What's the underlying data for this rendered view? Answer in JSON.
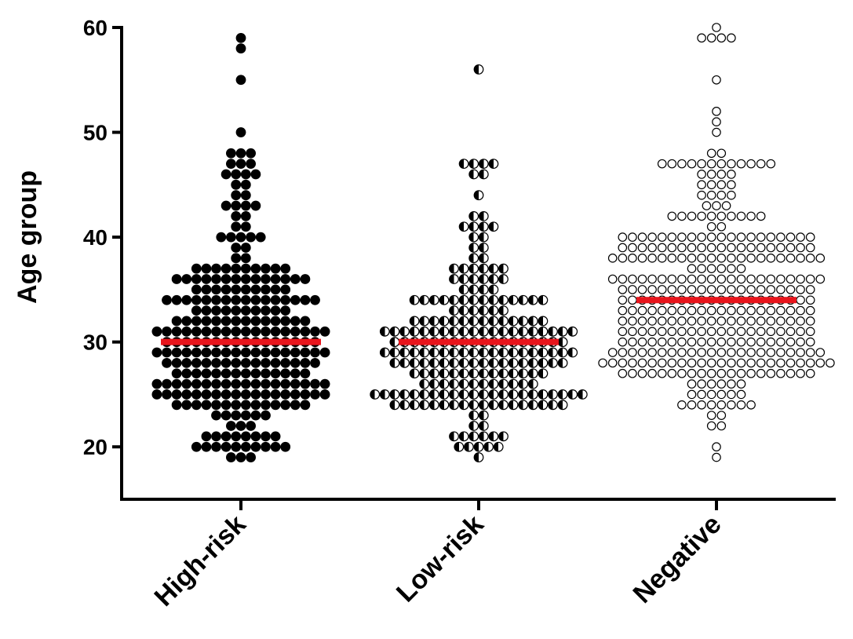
{
  "chart_data": {
    "type": "beeswarm",
    "y_label": "Age group",
    "categories": [
      "High-risk",
      "Low-risk",
      "Negative"
    ],
    "markers": [
      "filled",
      "half-filled",
      "open"
    ],
    "color": "#000000",
    "mean_color": "#e8141b",
    "means": [
      30,
      30,
      34
    ],
    "ylim": [
      15,
      60
    ],
    "yticks": [
      20,
      30,
      40,
      50,
      60
    ],
    "values": [
      [
        59,
        58,
        55,
        50,
        48,
        48,
        48,
        47,
        47,
        47,
        46,
        46,
        46,
        46,
        45,
        45,
        44,
        44,
        43,
        43,
        43,
        43,
        42,
        42,
        41,
        41,
        40,
        40,
        40,
        40,
        40,
        39,
        39,
        38,
        38,
        37,
        37,
        37,
        37,
        37,
        37,
        37,
        37,
        37,
        37,
        36,
        36,
        36,
        36,
        36,
        36,
        36,
        36,
        36,
        36,
        36,
        36,
        36,
        36,
        35,
        35,
        35,
        35,
        35,
        35,
        35,
        35,
        35,
        35,
        34,
        34,
        34,
        34,
        34,
        34,
        34,
        34,
        34,
        34,
        34,
        34,
        34,
        34,
        34,
        34,
        33,
        33,
        33,
        33,
        33,
        33,
        33,
        33,
        33,
        33,
        32,
        32,
        32,
        32,
        32,
        32,
        32,
        32,
        32,
        32,
        32,
        32,
        32,
        32,
        31,
        31,
        31,
        31,
        31,
        31,
        31,
        31,
        31,
        31,
        31,
        31,
        31,
        31,
        31,
        31,
        31,
        31,
        30,
        30,
        30,
        30,
        30,
        30,
        30,
        30,
        30,
        30,
        30,
        30,
        30,
        30,
        30,
        30,
        29,
        29,
        29,
        29,
        29,
        29,
        29,
        29,
        29,
        29,
        29,
        29,
        29,
        29,
        29,
        29,
        29,
        29,
        28,
        28,
        28,
        28,
        28,
        28,
        28,
        28,
        28,
        28,
        28,
        28,
        28,
        28,
        28,
        28,
        27,
        27,
        27,
        27,
        27,
        27,
        27,
        27,
        27,
        27,
        27,
        27,
        27,
        27,
        26,
        26,
        26,
        26,
        26,
        26,
        26,
        26,
        26,
        26,
        26,
        26,
        26,
        26,
        26,
        26,
        26,
        26,
        25,
        25,
        25,
        25,
        25,
        25,
        25,
        25,
        25,
        25,
        25,
        25,
        25,
        25,
        25,
        25,
        25,
        25,
        24,
        24,
        24,
        24,
        24,
        24,
        24,
        24,
        24,
        24,
        24,
        24,
        24,
        24,
        23,
        23,
        23,
        23,
        23,
        23,
        22,
        22,
        22,
        21,
        21,
        21,
        21,
        21,
        21,
        21,
        21,
        20,
        20,
        20,
        20,
        20,
        20,
        20,
        20,
        20,
        20,
        19,
        19,
        19
      ],
      [
        56,
        47,
        47,
        47,
        47,
        46,
        46,
        44,
        42,
        42,
        41,
        41,
        41,
        41,
        40,
        40,
        39,
        39,
        38,
        38,
        37,
        37,
        37,
        37,
        37,
        37,
        36,
        36,
        36,
        36,
        36,
        36,
        35,
        35,
        35,
        35,
        34,
        34,
        34,
        34,
        34,
        34,
        34,
        34,
        34,
        34,
        34,
        34,
        34,
        34,
        33,
        33,
        33,
        33,
        33,
        33,
        32,
        32,
        32,
        32,
        32,
        32,
        32,
        32,
        32,
        32,
        32,
        32,
        32,
        32,
        31,
        31,
        31,
        31,
        31,
        31,
        31,
        31,
        31,
        31,
        31,
        31,
        31,
        31,
        31,
        31,
        31,
        31,
        31,
        31,
        30,
        30,
        30,
        30,
        30,
        30,
        30,
        30,
        30,
        30,
        30,
        30,
        30,
        30,
        30,
        30,
        30,
        30,
        29,
        29,
        29,
        29,
        29,
        29,
        29,
        29,
        29,
        29,
        29,
        29,
        29,
        29,
        29,
        29,
        29,
        29,
        29,
        29,
        28,
        28,
        28,
        28,
        28,
        28,
        28,
        28,
        28,
        28,
        28,
        28,
        28,
        28,
        28,
        28,
        28,
        28,
        27,
        27,
        27,
        27,
        27,
        27,
        27,
        27,
        27,
        27,
        27,
        27,
        27,
        27,
        26,
        26,
        26,
        26,
        26,
        26,
        26,
        26,
        26,
        26,
        26,
        26,
        25,
        25,
        25,
        25,
        25,
        25,
        25,
        25,
        25,
        25,
        25,
        25,
        25,
        25,
        25,
        25,
        25,
        25,
        25,
        25,
        25,
        25,
        24,
        24,
        24,
        24,
        24,
        24,
        24,
        24,
        24,
        24,
        24,
        24,
        24,
        24,
        24,
        24,
        24,
        24,
        23,
        23,
        22,
        22,
        21,
        21,
        21,
        21,
        21,
        21,
        20,
        20,
        20,
        20,
        20,
        19
      ],
      [
        60,
        59,
        59,
        59,
        59,
        55,
        52,
        51,
        50,
        48,
        48,
        47,
        47,
        47,
        47,
        47,
        47,
        47,
        47,
        47,
        47,
        47,
        47,
        46,
        46,
        46,
        46,
        45,
        45,
        45,
        45,
        44,
        44,
        44,
        44,
        43,
        43,
        43,
        42,
        42,
        42,
        42,
        42,
        42,
        42,
        42,
        42,
        42,
        41,
        41,
        40,
        40,
        40,
        40,
        40,
        40,
        40,
        40,
        40,
        40,
        40,
        40,
        40,
        40,
        40,
        40,
        40,
        40,
        40,
        40,
        39,
        39,
        39,
        39,
        39,
        39,
        39,
        39,
        39,
        39,
        39,
        39,
        39,
        39,
        39,
        39,
        39,
        39,
        39,
        39,
        38,
        38,
        38,
        38,
        38,
        38,
        38,
        38,
        38,
        38,
        38,
        38,
        38,
        38,
        38,
        38,
        38,
        38,
        38,
        38,
        38,
        38,
        37,
        37,
        37,
        37,
        37,
        37,
        36,
        36,
        36,
        36,
        36,
        36,
        36,
        36,
        36,
        36,
        36,
        36,
        36,
        36,
        36,
        36,
        36,
        36,
        36,
        36,
        36,
        36,
        35,
        35,
        35,
        35,
        35,
        35,
        35,
        35,
        35,
        35,
        35,
        35,
        35,
        35,
        35,
        35,
        35,
        35,
        35,
        35,
        34,
        34,
        34,
        34,
        34,
        34,
        34,
        34,
        34,
        34,
        34,
        34,
        34,
        34,
        34,
        34,
        34,
        34,
        34,
        34,
        33,
        33,
        33,
        33,
        33,
        33,
        33,
        33,
        33,
        33,
        33,
        33,
        33,
        33,
        33,
        33,
        33,
        33,
        33,
        33,
        32,
        32,
        32,
        32,
        32,
        32,
        32,
        32,
        32,
        32,
        32,
        32,
        32,
        32,
        32,
        32,
        32,
        32,
        32,
        32,
        31,
        31,
        31,
        31,
        31,
        31,
        31,
        31,
        31,
        31,
        31,
        31,
        31,
        31,
        31,
        31,
        31,
        31,
        31,
        31,
        30,
        30,
        30,
        30,
        30,
        30,
        30,
        30,
        30,
        30,
        30,
        30,
        30,
        30,
        30,
        30,
        30,
        30,
        30,
        30,
        29,
        29,
        29,
        29,
        29,
        29,
        29,
        29,
        29,
        29,
        29,
        29,
        29,
        29,
        29,
        29,
        29,
        29,
        29,
        29,
        29,
        29,
        28,
        28,
        28,
        28,
        28,
        28,
        28,
        28,
        28,
        28,
        28,
        28,
        28,
        28,
        28,
        28,
        28,
        28,
        28,
        28,
        28,
        28,
        28,
        28,
        27,
        27,
        27,
        27,
        27,
        27,
        27,
        27,
        27,
        27,
        27,
        27,
        27,
        27,
        27,
        27,
        27,
        27,
        27,
        27,
        26,
        26,
        26,
        26,
        26,
        26,
        25,
        25,
        25,
        25,
        25,
        25,
        24,
        24,
        24,
        24,
        24,
        24,
        24,
        24,
        23,
        23,
        22,
        22,
        20,
        19
      ]
    ]
  }
}
